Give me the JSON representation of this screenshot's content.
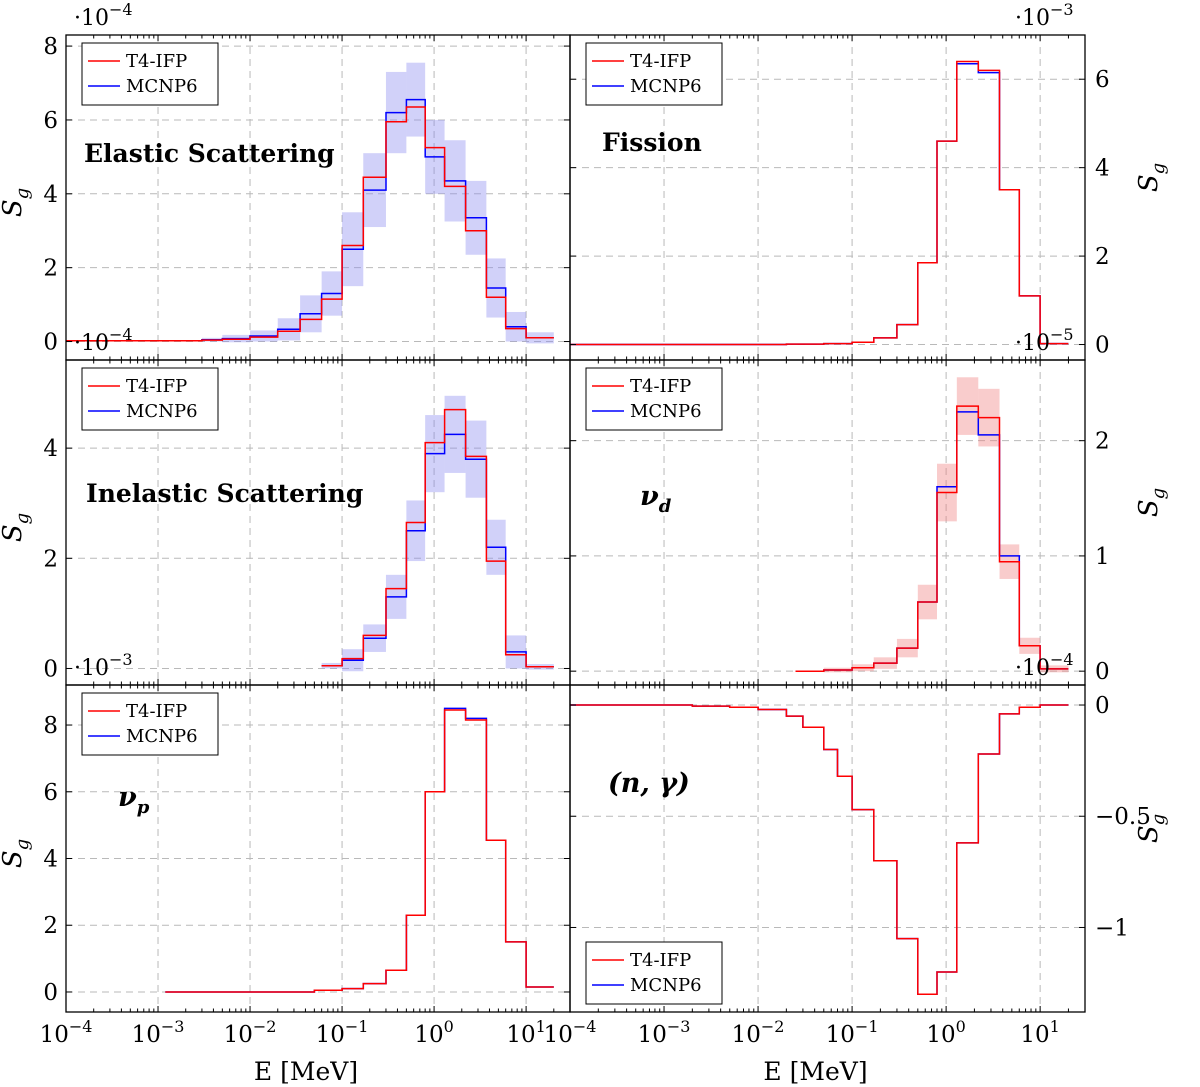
{
  "xlabel": "E [MeV]",
  "ylabel": "S_g",
  "legend": [
    "T4-IFP",
    "MCNP6"
  ],
  "colors": {
    "t4": "#ff0000",
    "mcnp": "#0000ff",
    "band_mcnp": "#8c8cf0",
    "band_t4": "#f08080"
  },
  "x_ticks": [
    "10^-4",
    "10^-3",
    "10^-2",
    "10^-1",
    "10^0",
    "10^1"
  ],
  "chart_data": [
    {
      "type": "line",
      "id": "elastic",
      "annotation": "Elastic Scattering",
      "exponent": "·10^-4",
      "xscale": "log",
      "xlim": [
        0.0001,
        30
      ],
      "ylim": [
        -0.5,
        8.3
      ],
      "yticks": [
        0,
        2,
        4,
        6,
        8
      ],
      "yside": "left",
      "legend_position": "top-left",
      "band": "mcnp",
      "edges": [
        0.0001,
        0.003,
        0.005,
        0.01,
        0.02,
        0.035,
        0.06,
        0.1,
        0.17,
        0.3,
        0.5,
        0.8,
        1.3,
        2.2,
        3.7,
        6.0,
        10,
        20
      ],
      "series": [
        {
          "name": "T4-IFP",
          "values": [
            0.02,
            0.04,
            0.06,
            0.12,
            0.28,
            0.6,
            1.15,
            2.6,
            4.45,
            5.95,
            6.35,
            5.25,
            4.2,
            3.0,
            1.2,
            0.35,
            0.1
          ]
        },
        {
          "name": "MCNP6",
          "values": [
            0.02,
            0.05,
            0.08,
            0.15,
            0.33,
            0.75,
            1.3,
            2.5,
            4.1,
            6.2,
            6.55,
            5.0,
            4.35,
            3.35,
            1.45,
            0.4,
            0.1
          ],
          "errors": [
            0.0,
            0.05,
            0.1,
            0.15,
            0.3,
            0.5,
            0.6,
            1.0,
            1.0,
            1.1,
            1.0,
            1.0,
            1.1,
            1.0,
            0.8,
            0.4,
            0.15
          ]
        }
      ]
    },
    {
      "type": "line",
      "id": "fission",
      "annotation": "Fission",
      "exponent": "·10^-3",
      "xscale": "log",
      "xlim": [
        0.0001,
        30
      ],
      "ylim": [
        -0.35,
        7.0
      ],
      "yticks": [
        0,
        2,
        4,
        6
      ],
      "yside": "right",
      "legend_position": "top-left",
      "band": "none",
      "edges": [
        0.0001,
        0.02,
        0.05,
        0.1,
        0.17,
        0.3,
        0.5,
        0.8,
        1.3,
        2.2,
        3.7,
        6.0,
        10,
        20
      ],
      "series": [
        {
          "name": "T4-IFP",
          "values": [
            0.0,
            0.01,
            0.02,
            0.05,
            0.15,
            0.45,
            1.85,
            4.6,
            6.4,
            6.2,
            3.5,
            1.1,
            0.02
          ]
        },
        {
          "name": "MCNP6",
          "values": [
            0.0,
            0.01,
            0.02,
            0.05,
            0.15,
            0.45,
            1.85,
            4.6,
            6.35,
            6.15,
            3.5,
            1.1,
            0.02
          ]
        }
      ]
    },
    {
      "type": "line",
      "id": "inelastic",
      "annotation": "Inelastic Scattering",
      "exponent": "·10^-4",
      "xscale": "log",
      "xlim": [
        0.0001,
        30
      ],
      "ylim": [
        -0.3,
        5.6
      ],
      "yticks": [
        0,
        2,
        4
      ],
      "yside": "left",
      "legend_position": "top-left",
      "band": "mcnp",
      "edges": [
        0.06,
        0.1,
        0.17,
        0.3,
        0.5,
        0.8,
        1.3,
        2.2,
        3.7,
        6.0,
        10,
        20
      ],
      "series": [
        {
          "name": "T4-IFP",
          "values": [
            0.05,
            0.18,
            0.6,
            1.45,
            2.65,
            4.1,
            4.7,
            3.85,
            1.95,
            0.25,
            0.03
          ]
        },
        {
          "name": "MCNP6",
          "values": [
            0.05,
            0.15,
            0.55,
            1.3,
            2.5,
            3.9,
            4.25,
            3.8,
            2.2,
            0.3,
            0.03
          ],
          "errors": [
            0.05,
            0.2,
            0.25,
            0.4,
            0.55,
            0.7,
            0.7,
            0.7,
            0.5,
            0.3,
            0.05
          ]
        }
      ]
    },
    {
      "type": "line",
      "id": "nu_d",
      "annotation": "ν_d",
      "exponent": "·10^-5",
      "xscale": "log",
      "xlim": [
        0.0001,
        30
      ],
      "ylim": [
        -0.12,
        2.7
      ],
      "yticks": [
        0,
        1,
        2
      ],
      "yside": "right",
      "legend_position": "top-left",
      "band": "t4",
      "edges": [
        0.025,
        0.05,
        0.1,
        0.17,
        0.3,
        0.5,
        0.8,
        1.3,
        2.2,
        3.7,
        6.0,
        10,
        20
      ],
      "series": [
        {
          "name": "T4-IFP",
          "values": [
            0.0,
            0.01,
            0.03,
            0.07,
            0.2,
            0.6,
            1.55,
            2.3,
            2.2,
            0.95,
            0.22,
            0.02
          ]
        },
        {
          "name": "MCNP6",
          "values": [
            0.0,
            0.01,
            0.03,
            0.07,
            0.2,
            0.6,
            1.6,
            2.25,
            2.05,
            1.0,
            0.22,
            0.02
          ],
          "errors": [
            0.0,
            0.02,
            0.03,
            0.05,
            0.08,
            0.15,
            0.25,
            0.25,
            0.25,
            0.15,
            0.07,
            0.03
          ]
        }
      ]
    },
    {
      "type": "line",
      "id": "nu_p",
      "annotation": "ν_p",
      "exponent": "·10^-3",
      "xscale": "log",
      "xlim": [
        0.0001,
        30
      ],
      "ylim": [
        -0.6,
        9.2
      ],
      "yticks": [
        0,
        2,
        4,
        6,
        8
      ],
      "yside": "left",
      "legend_position": "top-left",
      "band": "none",
      "edges": [
        0.0012,
        0.05,
        0.1,
        0.17,
        0.3,
        0.5,
        0.8,
        1.3,
        2.2,
        3.7,
        6.0,
        10,
        20
      ],
      "series": [
        {
          "name": "T4-IFP",
          "values": [
            0.0,
            0.05,
            0.1,
            0.25,
            0.65,
            2.3,
            6.0,
            8.45,
            8.15,
            4.55,
            1.5,
            0.15
          ]
        },
        {
          "name": "MCNP6",
          "values": [
            0.0,
            0.05,
            0.1,
            0.25,
            0.65,
            2.3,
            6.0,
            8.5,
            8.2,
            4.55,
            1.5,
            0.15
          ]
        }
      ]
    },
    {
      "type": "line",
      "id": "n_gamma",
      "annotation": "(n, γ)",
      "exponent": "·10^-4",
      "xscale": "log",
      "xlim": [
        0.0001,
        30
      ],
      "ylim": [
        -1.38,
        0.09
      ],
      "yticks": [
        0,
        -0.5,
        -1
      ],
      "yticklabels": [
        "0",
        "−0.5",
        "−1"
      ],
      "yside": "right",
      "legend_position": "bottom-left",
      "band": "none",
      "edges": [
        0.0001,
        0.002,
        0.005,
        0.01,
        0.02,
        0.03,
        0.05,
        0.07,
        0.1,
        0.17,
        0.3,
        0.5,
        0.8,
        1.3,
        2.2,
        3.7,
        6.0,
        10,
        20
      ],
      "series": [
        {
          "name": "T4-IFP",
          "values": [
            0.0,
            -0.005,
            -0.01,
            -0.02,
            -0.05,
            -0.1,
            -0.2,
            -0.32,
            -0.47,
            -0.7,
            -1.05,
            -1.3,
            -1.2,
            -0.62,
            -0.22,
            -0.04,
            -0.01,
            0.0
          ]
        },
        {
          "name": "MCNP6",
          "values": [
            0.0,
            -0.005,
            -0.01,
            -0.02,
            -0.05,
            -0.1,
            -0.2,
            -0.32,
            -0.47,
            -0.7,
            -1.05,
            -1.3,
            -1.2,
            -0.62,
            -0.22,
            -0.04,
            -0.01,
            0.0
          ]
        }
      ]
    }
  ]
}
